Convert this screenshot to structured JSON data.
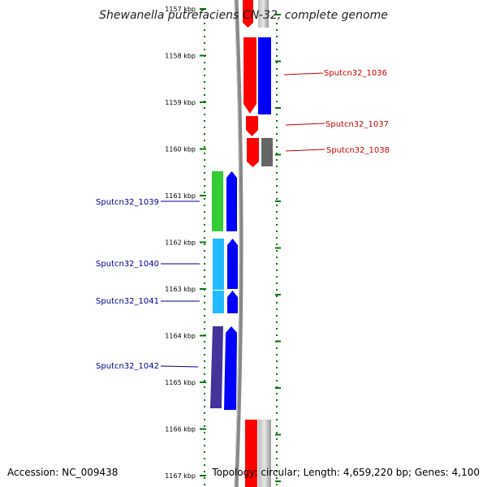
{
  "title": "Shewanella putrefaciens CN-32, complete genome",
  "accession": "Accession: NC_009438",
  "summary": "Topology: circular; Length: 4,659,220 bp; Genes: 4,100",
  "colors": {
    "plus_label": "#cc0000",
    "minus_label": "#000099",
    "tick": "#007700",
    "plus_cds": "#ff0000",
    "minus_cds": "#0000ff"
  },
  "scale": {
    "ticks": [
      "1157 kbp",
      "1158 kbp",
      "1159 kbp",
      "1160 kbp",
      "1161 kbp",
      "1162 kbp",
      "1163 kbp",
      "1164 kbp",
      "1165 kbp",
      "1166 kbp",
      "1167 kbp"
    ]
  },
  "genes": [
    {
      "label": "Sputcn32_1036",
      "strand": "plus"
    },
    {
      "label": "Sputcn32_1037",
      "strand": "plus"
    },
    {
      "label": "Sputcn32_1038",
      "strand": "plus"
    },
    {
      "label": "Sputcn32_1039",
      "strand": "minus"
    },
    {
      "label": "Sputcn32_1040",
      "strand": "minus"
    },
    {
      "label": "Sputcn32_1041",
      "strand": "minus"
    },
    {
      "label": "Sputcn32_1042",
      "strand": "minus"
    }
  ]
}
